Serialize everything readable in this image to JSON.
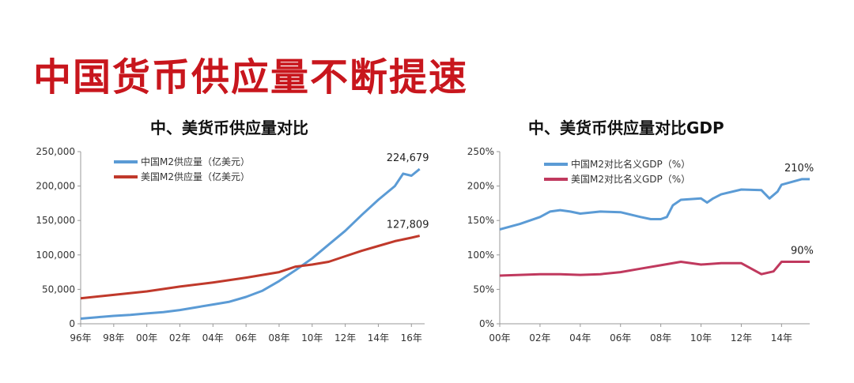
{
  "headline": "中国货币供应量不断提速",
  "chart_data": [
    {
      "type": "line",
      "title": "中、美货币供应量对比",
      "x_ticks": [
        "96年",
        "98年",
        "00年",
        "02年",
        "04年",
        "06年",
        "08年",
        "10年",
        "12年",
        "14年",
        "16年"
      ],
      "y_ticks": [
        "0",
        "50,000",
        "100,000",
        "150,000",
        "200,000",
        "250,000"
      ],
      "ylim": [
        0,
        250000
      ],
      "xlim": [
        1996,
        2016.8
      ],
      "series": [
        {
          "name": "中国M2供应量（亿美元）",
          "color": "#5b9bd5",
          "x": [
            1996,
            1997,
            1998,
            1999,
            2000,
            2001,
            2002,
            2003,
            2004,
            2005,
            2006,
            2007,
            2008,
            2009,
            2010,
            2011,
            2012,
            2013,
            2014,
            2015,
            2015.5,
            2016,
            2016.5
          ],
          "y": [
            7500,
            9500,
            11500,
            13000,
            15000,
            17000,
            20000,
            24000,
            28000,
            32000,
            39000,
            48000,
            62000,
            78000,
            95000,
            115000,
            135000,
            158000,
            180000,
            200000,
            218000,
            215000,
            224679
          ]
        },
        {
          "name": "美国M2供应量（亿美元）",
          "color": "#c0392b",
          "x": [
            1996,
            1998,
            2000,
            2002,
            2004,
            2006,
            2008,
            2009,
            2010,
            2011,
            2012,
            2013,
            2014,
            2015,
            2016,
            2016.5
          ],
          "y": [
            37000,
            42000,
            47000,
            54000,
            60000,
            67000,
            75000,
            83000,
            86000,
            90000,
            98000,
            106000,
            113000,
            120000,
            125000,
            127809
          ]
        }
      ],
      "annotations": [
        "224,679",
        "127,809"
      ],
      "legend_position": "top-center",
      "grid": false
    },
    {
      "type": "line",
      "title": "中、美货币供应量对比GDP",
      "x_ticks": [
        "00年",
        "02年",
        "04年",
        "06年",
        "08年",
        "10年",
        "12年",
        "14年"
      ],
      "y_ticks": [
        "0%",
        "50%",
        "100%",
        "150%",
        "200%",
        "250%"
      ],
      "ylim": [
        0,
        250
      ],
      "xlim": [
        2000,
        2015.4
      ],
      "series": [
        {
          "name": "中国M2对比名义GDP（%）",
          "color": "#5b9bd5",
          "x": [
            2000,
            2001,
            2002,
            2002.5,
            2003,
            2003.5,
            2004,
            2005,
            2006,
            2007,
            2007.5,
            2008,
            2008.3,
            2008.6,
            2009,
            2010,
            2010.3,
            2010.6,
            2011,
            2012,
            2013,
            2013.4,
            2013.8,
            2014,
            2015,
            2015.4
          ],
          "y": [
            137,
            145,
            155,
            163,
            165,
            163,
            160,
            163,
            162,
            155,
            152,
            152,
            155,
            172,
            180,
            182,
            176,
            182,
            188,
            195,
            194,
            182,
            192,
            202,
            210,
            210
          ]
        },
        {
          "name": "美国M2对比名义GDP（%）",
          "color": "#c0395e",
          "x": [
            2000,
            2001,
            2002,
            2003,
            2004,
            2005,
            2006,
            2007,
            2008,
            2009,
            2010,
            2011,
            2012,
            2013,
            2013.6,
            2014,
            2015,
            2015.4
          ],
          "y": [
            70,
            71,
            72,
            72,
            71,
            72,
            75,
            80,
            85,
            90,
            86,
            88,
            88,
            72,
            76,
            90,
            90,
            90
          ]
        }
      ],
      "annotations": [
        "210%",
        "90%"
      ],
      "legend_position": "top-center",
      "grid": false
    }
  ]
}
